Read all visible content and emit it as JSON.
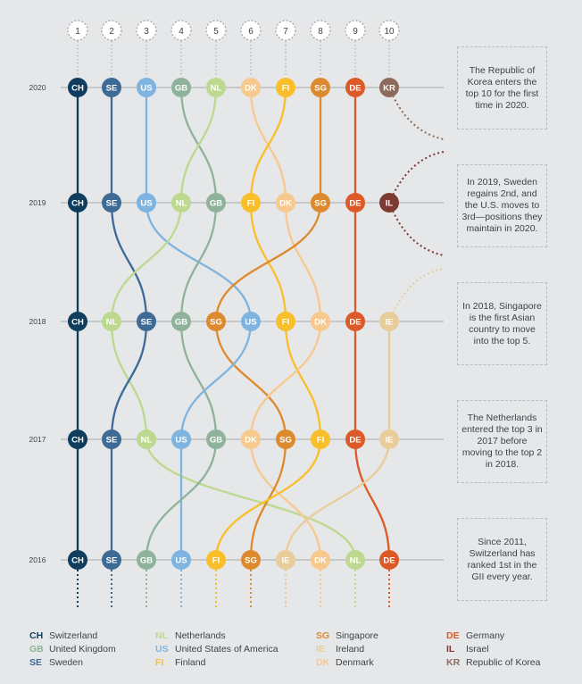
{
  "chart_data": {
    "type": "line",
    "title": "",
    "ranks": [
      "1",
      "2",
      "3",
      "4",
      "5",
      "6",
      "7",
      "8",
      "9",
      "10"
    ],
    "years": [
      "2020",
      "2019",
      "2018",
      "2017",
      "2016"
    ],
    "rankings": {
      "2020": [
        "CH",
        "SE",
        "US",
        "GB",
        "NL",
        "DK",
        "FI",
        "SG",
        "DE",
        "KR"
      ],
      "2019": [
        "CH",
        "SE",
        "US",
        "NL",
        "GB",
        "FI",
        "DK",
        "SG",
        "DE",
        "IL"
      ],
      "2018": [
        "CH",
        "NL",
        "SE",
        "GB",
        "SG",
        "US",
        "FI",
        "DK",
        "DE",
        "IE"
      ],
      "2017": [
        "CH",
        "SE",
        "NL",
        "US",
        "GB",
        "DK",
        "SG",
        "FI",
        "DE",
        "IE"
      ],
      "2016": [
        "CH",
        "SE",
        "GB",
        "US",
        "FI",
        "SG",
        "IE",
        "DK",
        "NL",
        "DE"
      ]
    },
    "countries": {
      "CH": {
        "name": "Switzerland",
        "color": "#0f3d5e"
      },
      "GB": {
        "name": "United Kingdom",
        "color": "#8fb39a"
      },
      "SE": {
        "name": "Sweden",
        "color": "#3e6a96"
      },
      "NL": {
        "name": "Netherlands",
        "color": "#bcd98f"
      },
      "US": {
        "name": "United States of America",
        "color": "#7fb4e0"
      },
      "FI": {
        "name": "Finland",
        "color": "#f9bf2b"
      },
      "SG": {
        "name": "Singapore",
        "color": "#dd8a2e"
      },
      "IE": {
        "name": "Ireland",
        "color": "#e8cc9a"
      },
      "DK": {
        "name": "Denmark",
        "color": "#f7c98e"
      },
      "DE": {
        "name": "Germany",
        "color": "#dc5a28"
      },
      "IL": {
        "name": "Israel",
        "color": "#7d3a33"
      },
      "KR": {
        "name": "Republic of Korea",
        "color": "#8e6a5a"
      }
    }
  },
  "notes": [
    "The Republic of Korea enters the top 10 for the first time in 2020.",
    "In 2019, Sweden regains 2nd, and the U.S. moves to 3rd—positions they maintain in 2020.",
    "In 2018, Singapore is the first Asian country to move into the top 5.",
    "The Netherlands entered the top 3 in 2017 before moving to the top 2 in 2018.",
    "Since 2011, Switzerland has ranked 1st in the GII every year."
  ],
  "legend": [
    [
      {
        "code": "CH",
        "name": "Switzerland"
      },
      {
        "code": "GB",
        "name": "United Kingdom"
      },
      {
        "code": "SE",
        "name": "Sweden"
      }
    ],
    [
      {
        "code": "NL",
        "name": "Netherlands"
      },
      {
        "code": "US",
        "name": "United States of America"
      },
      {
        "code": "FI",
        "name": "Finland"
      }
    ],
    [
      {
        "code": "SG",
        "name": "Singapore"
      },
      {
        "code": "IE",
        "name": "Ireland"
      },
      {
        "code": "DK",
        "name": "Denmark"
      }
    ],
    [
      {
        "code": "DE",
        "name": "Germany"
      },
      {
        "code": "IL",
        "name": "Israel"
      },
      {
        "code": "KR",
        "name": "Republic of Korea"
      }
    ]
  ],
  "colors": {
    "background": "#e6e7e8",
    "rowline": "#a7aaad",
    "text": "#3d4347"
  }
}
